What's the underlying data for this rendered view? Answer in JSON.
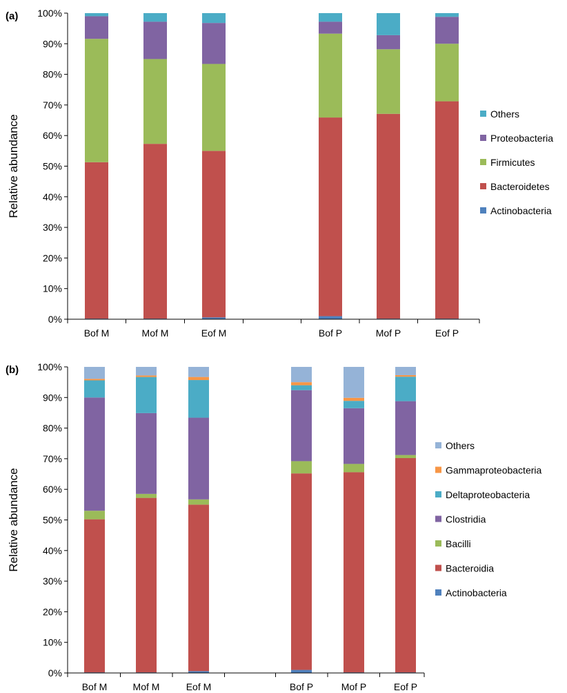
{
  "chart_data": [
    {
      "type": "bar",
      "stacked": true,
      "panel_label": "(a)",
      "ylabel": "Relative abundance",
      "ylim": [
        0,
        100
      ],
      "y_ticks": [
        "0%",
        "10%",
        "20%",
        "30%",
        "40%",
        "50%",
        "60%",
        "70%",
        "80%",
        "90%",
        "100%"
      ],
      "categories": [
        "Bof M",
        "Mof M",
        "Eof M",
        "Bof P",
        "Mof P",
        "Eof P"
      ],
      "group_gap_after": 2,
      "legend_position": "right",
      "legend_order": [
        "Others",
        "Proteobacteria",
        "Firmicutes",
        "Bacteroidetes",
        "Actinobacteria"
      ],
      "series": [
        {
          "name": "Actinobacteria",
          "color": "#4F81BD",
          "values": [
            0.2,
            0.2,
            0.6,
            1.0,
            0.2,
            0.2
          ]
        },
        {
          "name": "Bacteroidetes",
          "color": "#C0504D",
          "values": [
            51.1,
            57.1,
            54.4,
            64.9,
            66.9,
            71.0
          ]
        },
        {
          "name": "Firmicutes",
          "color": "#9BBB59",
          "values": [
            40.3,
            27.7,
            28.4,
            27.4,
            21.1,
            18.8
          ]
        },
        {
          "name": "Proteobacteria",
          "color": "#8064A2",
          "values": [
            7.4,
            12.2,
            13.4,
            3.9,
            4.6,
            8.8
          ]
        },
        {
          "name": "Others",
          "color": "#4BACC6",
          "values": [
            1.0,
            2.8,
            3.2,
            2.8,
            7.2,
            1.2
          ]
        }
      ]
    },
    {
      "type": "bar",
      "stacked": true,
      "panel_label": "(b)",
      "ylabel": "Relative abundance",
      "ylim": [
        0,
        100
      ],
      "y_ticks": [
        "0%",
        "10%",
        "20%",
        "30%",
        "40%",
        "50%",
        "60%",
        "70%",
        "80%",
        "90%",
        "100%"
      ],
      "categories": [
        "Bof M",
        "Mof M",
        "Eof M",
        "Bof P",
        "Mof P",
        "Eof P"
      ],
      "group_gap_after": 2,
      "legend_position": "right",
      "legend_order": [
        "Others",
        "Gammaproteobacteria",
        "Deltaproteobacteria",
        "Clostridia",
        "Bacilli",
        "Bacteroidia",
        "Actinobacteria"
      ],
      "series": [
        {
          "name": "Actinobacteria",
          "color": "#4F81BD",
          "values": [
            0.2,
            0.2,
            0.6,
            1.0,
            0.2,
            0.2
          ]
        },
        {
          "name": "Bacteroidia",
          "color": "#C0504D",
          "values": [
            50.0,
            57.0,
            54.4,
            64.2,
            65.4,
            70.0
          ]
        },
        {
          "name": "Bacilli",
          "color": "#9BBB59",
          "values": [
            2.8,
            1.3,
            1.7,
            4.0,
            2.7,
            1.0
          ]
        },
        {
          "name": "Clostridia",
          "color": "#8064A2",
          "values": [
            37.0,
            26.4,
            26.7,
            23.2,
            18.2,
            17.6
          ]
        },
        {
          "name": "Deltaproteobacteria",
          "color": "#4BACC6",
          "values": [
            5.6,
            11.8,
            12.3,
            1.6,
            2.4,
            8.0
          ]
        },
        {
          "name": "Gammaproteobacteria",
          "color": "#F79646",
          "values": [
            0.5,
            0.5,
            1.0,
            1.0,
            1.0,
            0.5
          ]
        },
        {
          "name": "Others",
          "color": "#95B3D7",
          "values": [
            3.9,
            2.8,
            3.3,
            5.0,
            10.1,
            2.7
          ]
        }
      ]
    }
  ]
}
